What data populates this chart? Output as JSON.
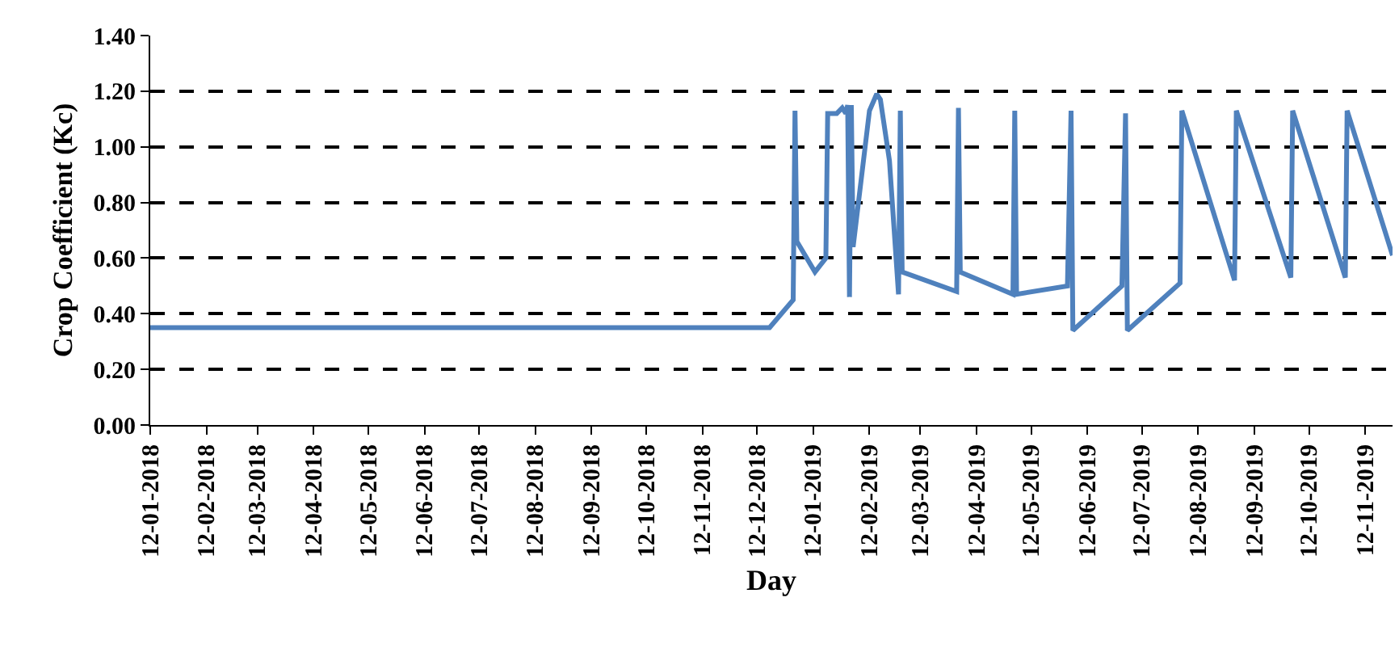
{
  "chart_data": {
    "type": "line",
    "xlabel": "Day",
    "ylabel": "Crop Coefficient (Kc)",
    "x": [
      "2018-01-12",
      "2018-12-19",
      "2019-01-01",
      "2019-01-02",
      "2019-01-03",
      "2019-01-13",
      "2019-01-19",
      "2019-01-20",
      "2019-01-25",
      "2019-01-28",
      "2019-01-30",
      "2019-01-31",
      "2019-02-01",
      "2019-02-02",
      "2019-02-03",
      "2019-02-12",
      "2019-02-16",
      "2019-02-18",
      "2019-02-23",
      "2019-02-28",
      "2019-03-01",
      "2019-03-02",
      "2019-04-01",
      "2019-04-02",
      "2019-04-03",
      "2019-05-02",
      "2019-05-03",
      "2019-05-04",
      "2019-06-01",
      "2019-06-03",
      "2019-06-04",
      "2019-07-01",
      "2019-07-03",
      "2019-07-04",
      "2019-08-02",
      "2019-08-03",
      "2019-09-01",
      "2019-09-02",
      "2019-10-02",
      "2019-10-03",
      "2019-11-01",
      "2019-11-02",
      "2019-11-27"
    ],
    "series": [
      {
        "color": "#4f81bd",
        "values": [
          0.35,
          0.35,
          0.45,
          1.13,
          0.66,
          0.55,
          0.6,
          1.12,
          1.12,
          1.14,
          1.12,
          1.15,
          0.46,
          1.15,
          0.64,
          1.13,
          1.19,
          1.17,
          0.95,
          0.47,
          1.13,
          0.55,
          0.48,
          1.14,
          0.55,
          0.47,
          1.13,
          0.47,
          0.5,
          1.13,
          0.34,
          0.5,
          1.12,
          0.34,
          0.51,
          1.13,
          0.52,
          1.13,
          0.53,
          1.13,
          0.53,
          1.13,
          0.61
        ]
      }
    ],
    "xlim": [
      "2018-01-12",
      "2019-11-27"
    ],
    "xticks": [
      {
        "value": "2018-01-12",
        "label": "12-01-2018"
      },
      {
        "value": "2018-02-12",
        "label": "12-02-2018"
      },
      {
        "value": "2018-03-12",
        "label": "12-03-2018"
      },
      {
        "value": "2018-04-12",
        "label": "12-04-2018"
      },
      {
        "value": "2018-05-12",
        "label": "12-05-2018"
      },
      {
        "value": "2018-06-12",
        "label": "12-06-2018"
      },
      {
        "value": "2018-07-12",
        "label": "12-07-2018"
      },
      {
        "value": "2018-08-12",
        "label": "12-08-2018"
      },
      {
        "value": "2018-09-12",
        "label": "12-09-2018"
      },
      {
        "value": "2018-10-12",
        "label": "12-10-2018"
      },
      {
        "value": "2018-11-12",
        "label": "12-11-2018"
      },
      {
        "value": "2018-12-12",
        "label": "12-12-2018"
      },
      {
        "value": "2019-01-12",
        "label": "12-01-2019"
      },
      {
        "value": "2019-02-12",
        "label": "12-02-2019"
      },
      {
        "value": "2019-03-12",
        "label": "12-03-2019"
      },
      {
        "value": "2019-04-12",
        "label": "12-04-2019"
      },
      {
        "value": "2019-05-12",
        "label": "12-05-2019"
      },
      {
        "value": "2019-06-12",
        "label": "12-06-2019"
      },
      {
        "value": "2019-07-12",
        "label": "12-07-2019"
      },
      {
        "value": "2019-08-12",
        "label": "12-08-2019"
      },
      {
        "value": "2019-09-12",
        "label": "12-09-2019"
      },
      {
        "value": "2019-10-12",
        "label": "12-10-2019"
      },
      {
        "value": "2019-11-12",
        "label": "12-11-2019"
      }
    ],
    "ylim": [
      0,
      1.4
    ],
    "yticks": [
      {
        "value": 0,
        "label": "0.00"
      },
      {
        "value": 0.2,
        "label": "0.20"
      },
      {
        "value": 0.4,
        "label": "0.40"
      },
      {
        "value": 0.6,
        "label": "0.60"
      },
      {
        "value": 0.8,
        "label": "0.80"
      },
      {
        "value": 1.0,
        "label": "1.00"
      },
      {
        "value": 1.2,
        "label": "1.20"
      },
      {
        "value": 1.4,
        "label": "1.40"
      }
    ],
    "grid": "y",
    "marker": "none",
    "line_style": "solid"
  }
}
